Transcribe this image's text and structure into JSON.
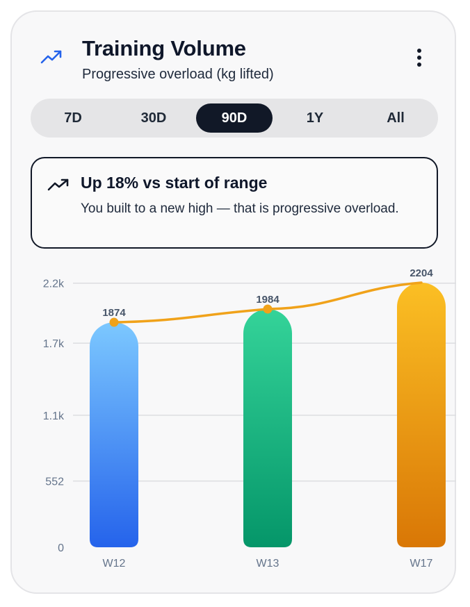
{
  "header": {
    "title": "Training Volume",
    "subtitle": "Progressive overload (kg lifted)",
    "icon": "trending-up-icon",
    "menu_icon": "more-vertical-icon"
  },
  "range_tabs": [
    {
      "label": "7D",
      "active": false
    },
    {
      "label": "30D",
      "active": false
    },
    {
      "label": "90D",
      "active": true
    },
    {
      "label": "1Y",
      "active": false
    },
    {
      "label": "All",
      "active": false
    }
  ],
  "insight": {
    "icon": "trending-up-icon",
    "title": "Up 18% vs start of range",
    "body": "You built to a new high — that is progressive overload."
  },
  "colors": {
    "accent_line": "#f0a21a",
    "bar_w12": [
      "#7cc8ff",
      "#2563eb"
    ],
    "bar_w13": [
      "#34d399",
      "#059669"
    ],
    "bar_w17": [
      "#fbbf24",
      "#d97706"
    ],
    "active_tab": "#111827"
  },
  "chart_data": {
    "type": "bar",
    "categories": [
      "W12",
      "W13",
      "W17"
    ],
    "values": [
      1874,
      1984,
      2204
    ],
    "trend_line": [
      1874,
      1984,
      2204
    ],
    "yticks": [
      0,
      552,
      1100,
      1700,
      2200
    ],
    "ytick_labels": [
      "0",
      "552",
      "1.1k",
      "1.7k",
      "2.2k"
    ],
    "ylim": [
      0,
      2204
    ],
    "data_labels": [
      "1874",
      "1984",
      "2204"
    ],
    "grid": true,
    "title": "",
    "xlabel": "",
    "ylabel": ""
  }
}
